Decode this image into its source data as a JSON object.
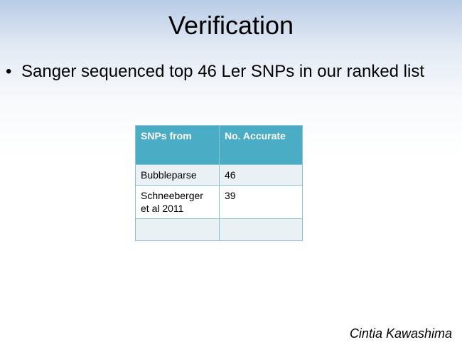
{
  "slide": {
    "title": "Verification",
    "bullet": "Sanger sequenced top 46 Ler SNPs in our ranked list",
    "bullet_marker": "•"
  },
  "table": {
    "headers": [
      "SNPs from",
      "No. Accurate"
    ],
    "rows": [
      [
        "Bubbleparse",
        "46"
      ],
      [
        "Schneeberger et al 2011",
        "39"
      ],
      [
        "",
        ""
      ]
    ]
  },
  "footer": {
    "author": "Cintia Kawashima"
  },
  "colors": {
    "header_bg": "#4bacc6",
    "row_alt_bg": "#eaf1f4",
    "border": "#8fc2d4"
  }
}
